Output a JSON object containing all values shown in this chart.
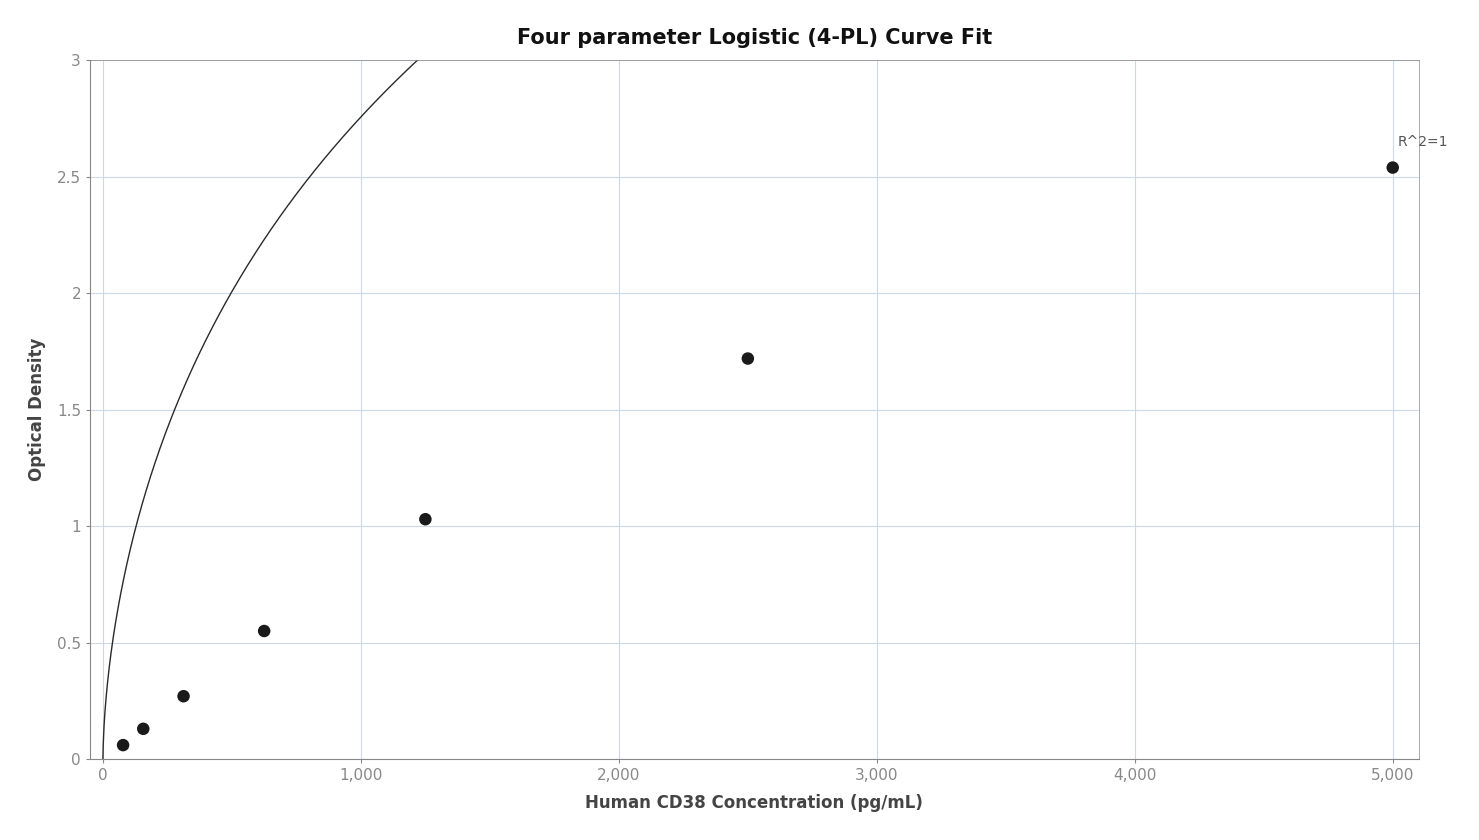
{
  "title": "Four parameter Logistic (4-PL) Curve Fit",
  "xlabel": "Human CD38 Concentration (pg/mL)",
  "ylabel": "Optical Density",
  "x_data": [
    78.1,
    156.3,
    312.5,
    625.0,
    1250.0,
    2500.0,
    5000.0
  ],
  "y_data": [
    0.06,
    0.13,
    0.27,
    0.55,
    1.03,
    1.72,
    2.54
  ],
  "xlim": [
    -50,
    5100
  ],
  "ylim": [
    0,
    3.0
  ],
  "xticks": [
    0,
    1000,
    2000,
    3000,
    4000,
    5000
  ],
  "yticks": [
    0,
    0.5,
    1.0,
    1.5,
    2.0,
    2.5,
    3.0
  ],
  "xtick_labels": [
    "0",
    "1,000",
    "2,000",
    "3,000",
    "4,000",
    "5,000"
  ],
  "ytick_labels": [
    "0",
    "0.5",
    "1",
    "1.5",
    "2",
    "2.5",
    "3"
  ],
  "r2_text": "R^2=1",
  "r2_x": 5020,
  "r2_y": 2.62,
  "marker_color": "#1a1a1a",
  "line_color": "#2a2a2a",
  "grid_color": "#ccd9ea",
  "bg_color": "#ffffff",
  "title_fontsize": 15,
  "label_fontsize": 12,
  "tick_fontsize": 11,
  "marker_size": 9,
  "line_width": 1.0,
  "annotation_fontsize": 10,
  "spine_color": "#888888",
  "tick_color": "#888888",
  "label_color": "#444444",
  "tick_label_color": "#888888"
}
